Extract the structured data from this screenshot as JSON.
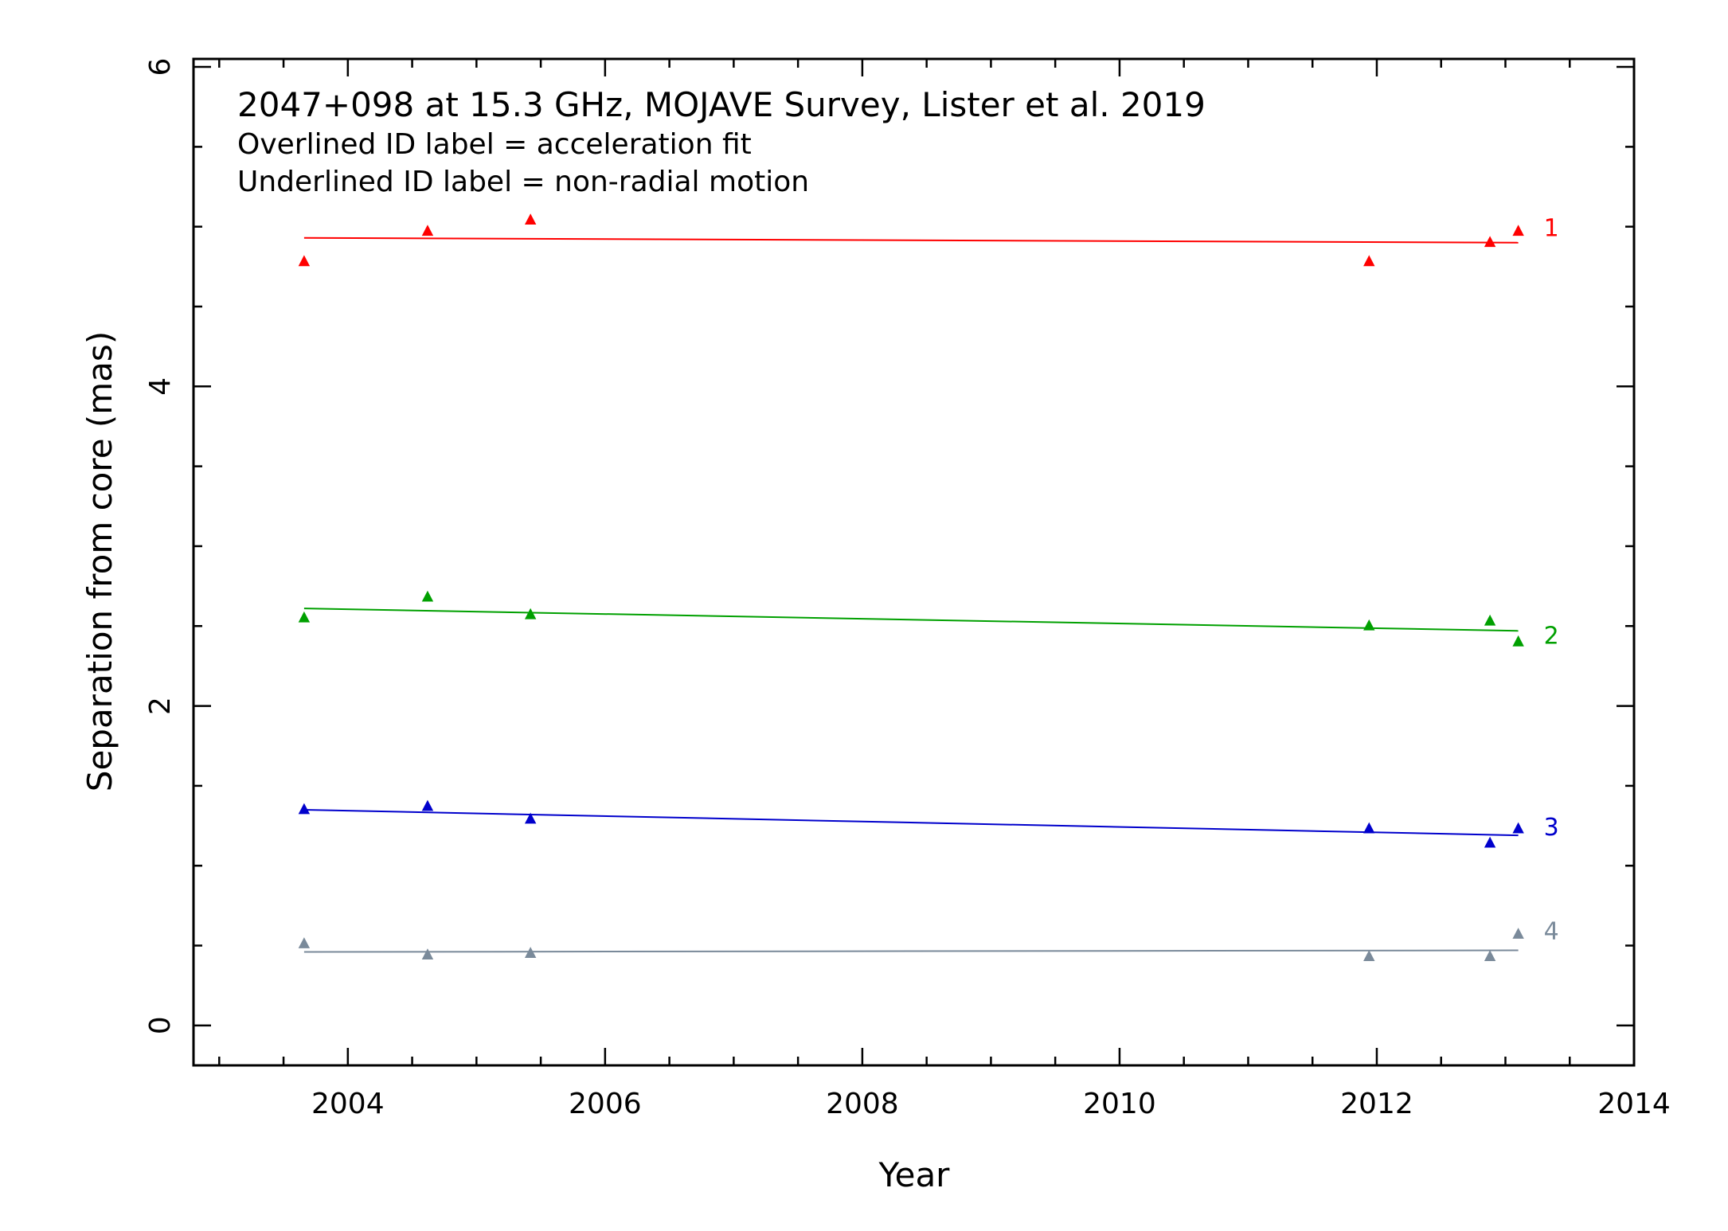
{
  "chart_data": {
    "type": "scatter",
    "title": "2047+098 at 15.3 GHz, MOJAVE Survey, Lister et al. 2019",
    "notes": [
      "Overlined ID label = acceleration fit",
      "Underlined ID label = non-radial motion"
    ],
    "xlabel": "Year",
    "ylabel": "Separation from core (mas)",
    "xlim": [
      2002.8,
      2014.0
    ],
    "ylim": [
      -0.25,
      6.05
    ],
    "xticks": [
      2004,
      2006,
      2008,
      2010,
      2012,
      2014
    ],
    "yticks": [
      0,
      2,
      4,
      6
    ],
    "marker": "triangle",
    "series": [
      {
        "name": "1",
        "color": "#ff0000",
        "x": [
          2003.66,
          2004.62,
          2005.42,
          2011.94,
          2012.88,
          2013.1
        ],
        "y": [
          4.78,
          4.97,
          5.04,
          4.78,
          4.9,
          4.97
        ],
        "fit": {
          "x": [
            2003.66,
            2013.1
          ],
          "y": [
            4.93,
            4.9
          ]
        }
      },
      {
        "name": "2",
        "color": "#00a000",
        "x": [
          2003.66,
          2004.62,
          2005.42,
          2011.94,
          2012.88,
          2013.1
        ],
        "y": [
          2.55,
          2.68,
          2.57,
          2.5,
          2.53,
          2.4
        ],
        "fit": {
          "x": [
            2003.66,
            2013.1
          ],
          "y": [
            2.61,
            2.47
          ]
        }
      },
      {
        "name": "3",
        "color": "#0000cc",
        "x": [
          2003.66,
          2004.62,
          2005.42,
          2011.94,
          2012.88,
          2013.1
        ],
        "y": [
          1.35,
          1.37,
          1.29,
          1.23,
          1.14,
          1.23
        ],
        "fit": {
          "x": [
            2003.66,
            2013.1
          ],
          "y": [
            1.35,
            1.19
          ]
        }
      },
      {
        "name": "4",
        "color": "#7a8a9a",
        "x": [
          2003.66,
          2004.62,
          2005.42,
          2011.94,
          2012.88,
          2013.1
        ],
        "y": [
          0.51,
          0.44,
          0.45,
          0.43,
          0.43,
          0.57
        ],
        "fit": {
          "x": [
            2003.66,
            2013.1
          ],
          "y": [
            0.46,
            0.47
          ]
        }
      }
    ]
  }
}
